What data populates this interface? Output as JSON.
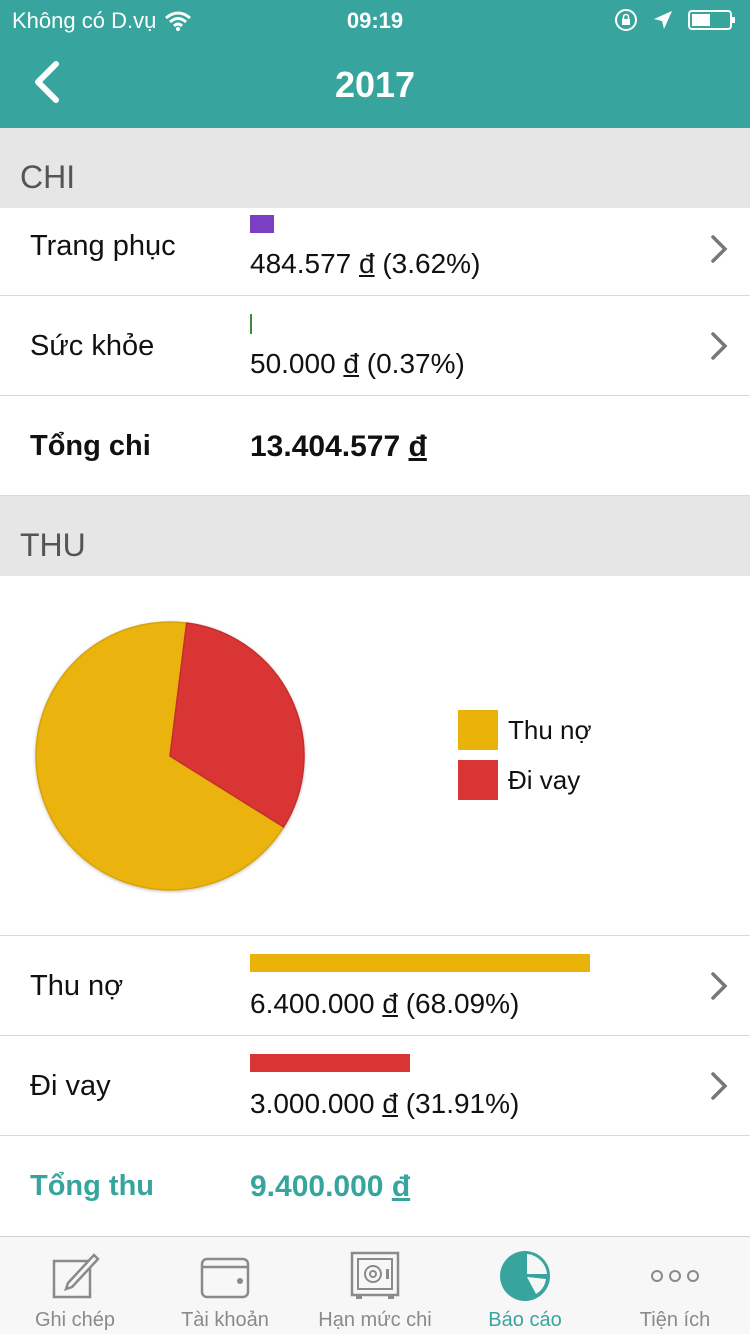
{
  "status_bar": {
    "carrier": "Không có D.vụ",
    "time": "09:19"
  },
  "header": {
    "title": "2017"
  },
  "chi": {
    "section_title": "CHI",
    "items": [
      {
        "label": "Trang phục",
        "amount": "484.577",
        "currency": "đ",
        "percent": "(3.62%)",
        "bar_fraction": 0.0362,
        "bar_color": "#7a3fc2"
      },
      {
        "label": "Sức khỏe",
        "amount": "50.000",
        "currency": "đ",
        "percent": "(0.37%)",
        "bar_fraction": 0.0037,
        "bar_color": "#3c8c3c"
      }
    ],
    "total": {
      "label": "Tổng chi",
      "amount": "13.404.577",
      "currency": "đ"
    }
  },
  "thu": {
    "section_title": "THU",
    "items": [
      {
        "label": "Thu nợ",
        "amount": "6.400.000",
        "currency": "đ",
        "percent": "(68.09%)",
        "bar_fraction": 0.6809,
        "bar_color": "#ebb30a"
      },
      {
        "label": "Đi vay",
        "amount": "3.000.000",
        "currency": "đ",
        "percent": "(31.91%)",
        "bar_fraction": 0.3191,
        "bar_color": "#d93535"
      }
    ],
    "total": {
      "label": "Tổng thu",
      "amount": "9.400.000",
      "currency": "đ"
    }
  },
  "chart_data": {
    "type": "pie",
    "categories": [
      "Thu nợ",
      "Đi vay"
    ],
    "values": [
      68.09,
      31.91
    ],
    "colors": [
      "#ebb30a",
      "#d93535"
    ],
    "legend": "right"
  },
  "tabs": [
    {
      "label": "Ghi chép",
      "icon": "pencil-note-icon",
      "active": false
    },
    {
      "label": "Tài khoản",
      "icon": "wallet-icon",
      "active": false
    },
    {
      "label": "Hạn mức chi",
      "icon": "safe-icon",
      "active": false
    },
    {
      "label": "Báo cáo",
      "icon": "pie-chart-icon",
      "active": true
    },
    {
      "label": "Tiện ích",
      "icon": "more-dots-icon",
      "active": false
    }
  ],
  "colors": {
    "accent": "#37a59d"
  }
}
